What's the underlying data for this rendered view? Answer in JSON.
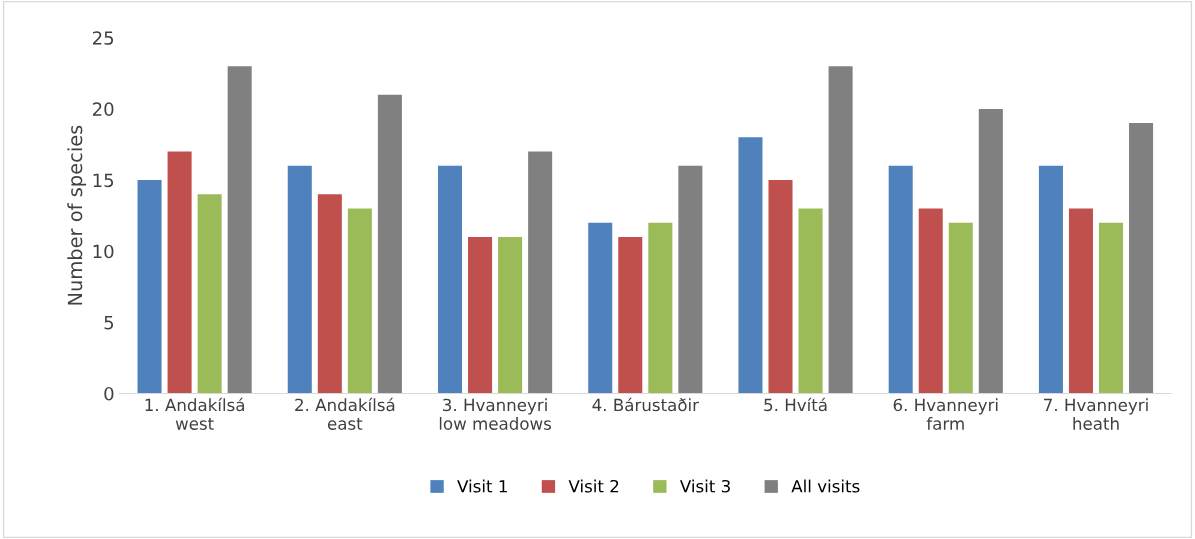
{
  "chart_data": {
    "type": "bar",
    "ylabel": "Number of species",
    "categories": [
      "1. Andakílsá\nwest",
      "2. Andakílsá\neast",
      "3. Hvanneyri\nlow meadows",
      "4. Bárustaðir",
      "5. Hvítá",
      "6. Hvanneyri\nfarm",
      "7. Hvanneyri\nheath"
    ],
    "series": [
      {
        "name": "Visit 1",
        "color": "#4f81bd",
        "values": [
          15,
          16,
          16,
          12,
          18,
          16,
          16
        ]
      },
      {
        "name": "Visit 2",
        "color": "#c0504d",
        "values": [
          17,
          14,
          11,
          11,
          15,
          13,
          13
        ]
      },
      {
        "name": "Visit 3",
        "color": "#9bbb59",
        "values": [
          14,
          13,
          11,
          12,
          13,
          12,
          12
        ]
      },
      {
        "name": "All visits",
        "color": "#808080",
        "values": [
          23,
          21,
          17,
          16,
          23,
          20,
          19
        ]
      }
    ],
    "ylim": [
      0,
      25
    ],
    "yticks": [
      0,
      5,
      10,
      15,
      20,
      25
    ],
    "grid": false,
    "legend": "bottom"
  }
}
